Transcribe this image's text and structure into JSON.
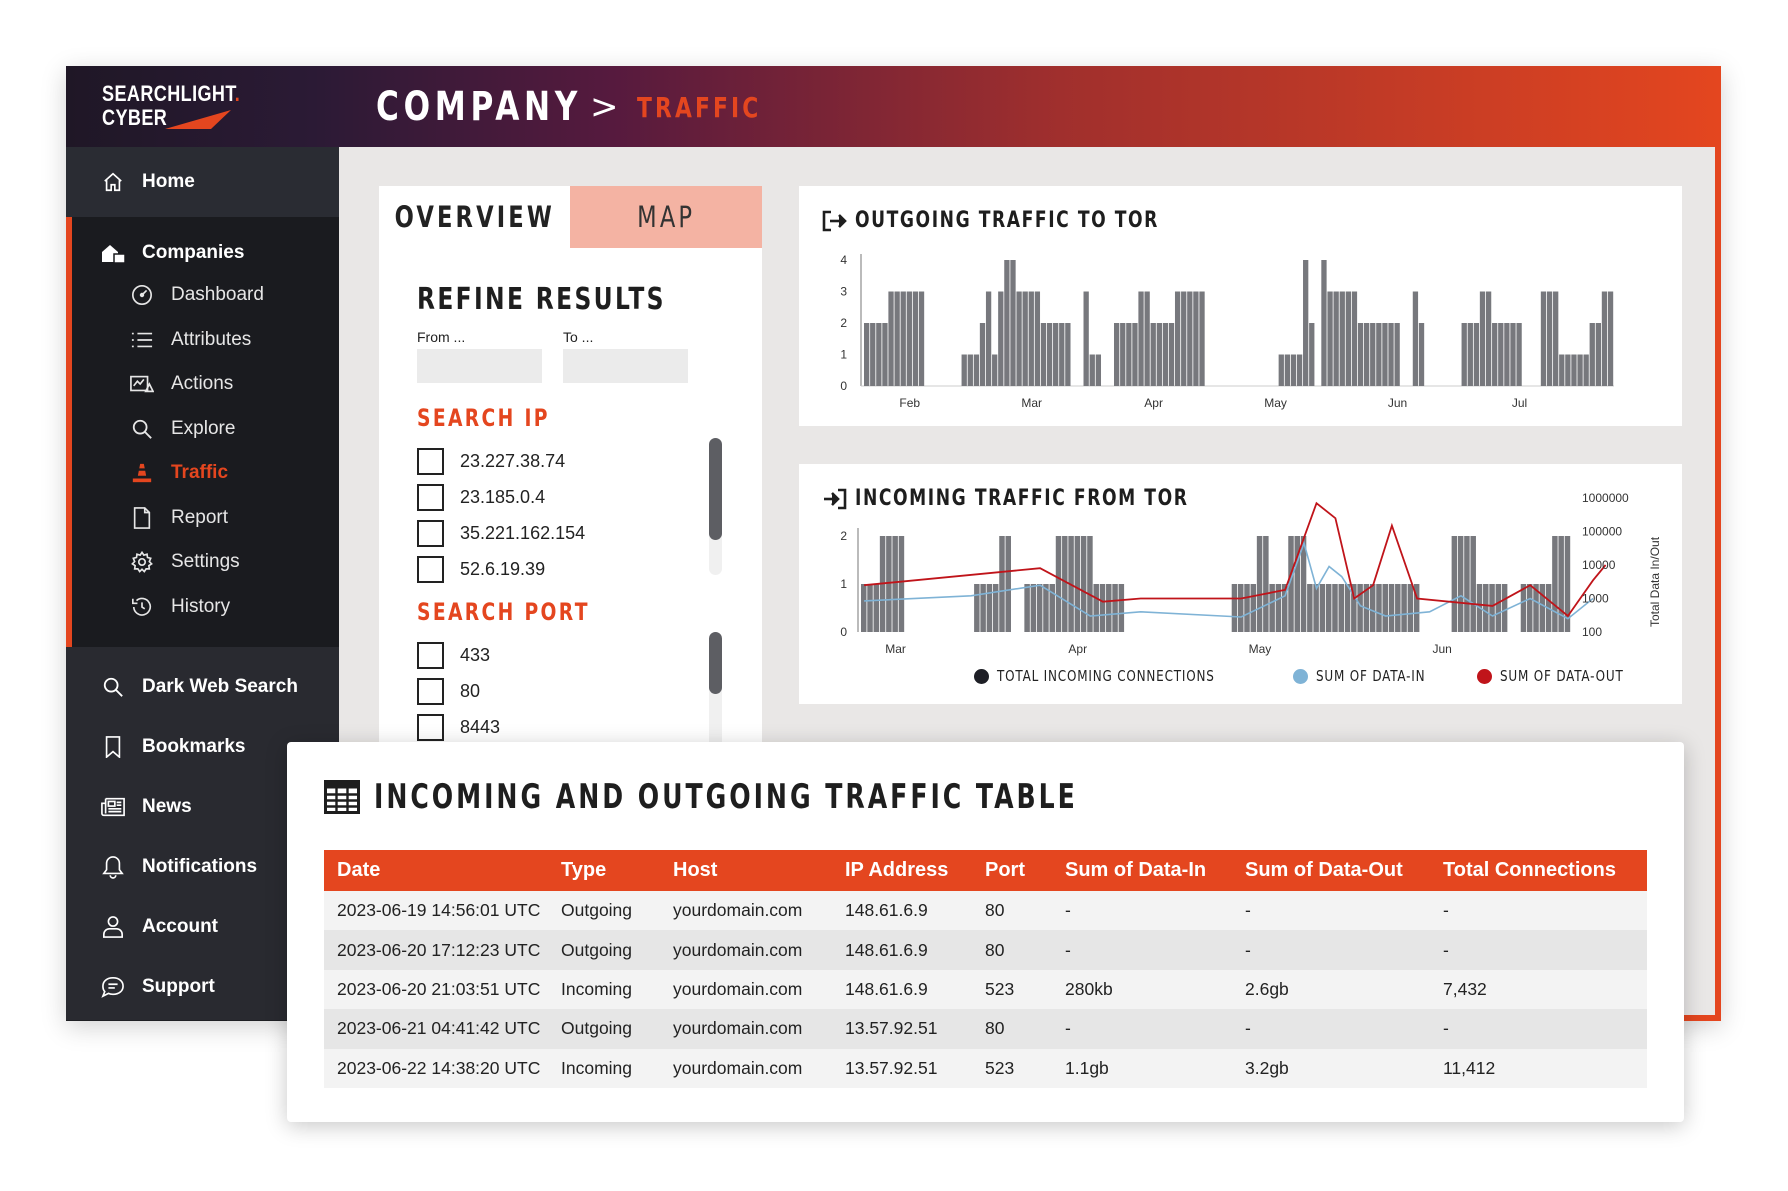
{
  "brand": {
    "line1": "SEARCHLIGHT",
    "dot": ".",
    "line2": "CYBER",
    "accent": "#e4461f"
  },
  "breadcrumb": {
    "section": "COMPANY",
    "separator": ">",
    "current": "TRAFFIC"
  },
  "sidebar": {
    "home": "Home",
    "companies": "Companies",
    "sub_items": [
      {
        "label": "Dashboard",
        "icon": "dashboard-icon"
      },
      {
        "label": "Attributes",
        "icon": "list-icon"
      },
      {
        "label": "Actions",
        "icon": "actions-icon"
      },
      {
        "label": "Explore",
        "icon": "search-icon"
      },
      {
        "label": "Traffic",
        "icon": "traffic-cone-icon",
        "active": true
      },
      {
        "label": "Report",
        "icon": "document-icon"
      },
      {
        "label": "Settings",
        "icon": "gear-icon"
      },
      {
        "label": "History",
        "icon": "history-icon"
      }
    ],
    "nav": [
      {
        "label": "Dark Web Search",
        "icon": "search-icon"
      },
      {
        "label": "Bookmarks",
        "icon": "bookmark-icon"
      },
      {
        "label": "News",
        "icon": "news-icon"
      },
      {
        "label": "Notifications",
        "icon": "bell-icon"
      },
      {
        "label": "Account",
        "icon": "user-icon"
      },
      {
        "label": "Support",
        "icon": "chat-icon"
      }
    ]
  },
  "filters": {
    "tabs": [
      "OVERVIEW",
      "MAP"
    ],
    "refine_title": "REFINE RESULTS",
    "from_label": "From ...",
    "to_label": "To ...",
    "search_ip_title": "SEARCH IP",
    "ips": [
      "23.227.38.74",
      "23.185.0.4",
      "35.221.162.154",
      "52.6.19.39"
    ],
    "ip_scroll_position": 0.0,
    "search_port_title": "SEARCH PORT",
    "ports": [
      "433",
      "80",
      "8443"
    ],
    "port_scroll_position": 0.0
  },
  "chart_data": [
    {
      "type": "bar",
      "title": "OUTGOING TRAFFIC TO TOR",
      "ylim": [
        0,
        4
      ],
      "yticks": [
        "0",
        "1",
        "2",
        "3",
        "4"
      ],
      "xtick_labels": [
        "Feb",
        "Mar",
        "Apr",
        "May",
        "Jun",
        "Jul"
      ],
      "xtick_index": [
        7,
        27,
        47,
        67,
        87,
        107
      ],
      "values": [
        2,
        2,
        2,
        2,
        3,
        3,
        3,
        3,
        3,
        3,
        0,
        0,
        0,
        0,
        0,
        0,
        1,
        1,
        1,
        2,
        3,
        1,
        3,
        4,
        4,
        3,
        3,
        3,
        3,
        2,
        2,
        2,
        2,
        2,
        0,
        0,
        3,
        1,
        1,
        0,
        0,
        2,
        2,
        2,
        2,
        3,
        3,
        2,
        2,
        2,
        2,
        3,
        3,
        3,
        3,
        3,
        0,
        0,
        0,
        0,
        0,
        0,
        0,
        0,
        0,
        0,
        0,
        0,
        1,
        1,
        1,
        1,
        4,
        2,
        0,
        4,
        3,
        3,
        3,
        3,
        3,
        2,
        2,
        2,
        2,
        2,
        2,
        2,
        0,
        0,
        3,
        2,
        0,
        0,
        0,
        0,
        0,
        0,
        2,
        2,
        2,
        3,
        3,
        2,
        2,
        2,
        2,
        2,
        0,
        0,
        0,
        3,
        3,
        3,
        1,
        1,
        1,
        1,
        1,
        2,
        2,
        3,
        3
      ]
    },
    {
      "type": "bar+line",
      "title": "INCOMING TRAFFIC FROM TOR",
      "ylim": [
        0,
        2
      ],
      "yticks": [
        "0",
        "1",
        "2"
      ],
      "y2_label": "Total Data In/Out",
      "y2_ticks": [
        "100",
        "1000",
        "10000",
        "100000",
        "1000000"
      ],
      "xtick_labels": [
        "Mar",
        "Apr",
        "May",
        "Jun"
      ],
      "xtick_index": [
        5,
        34,
        63,
        92
      ],
      "values": [
        1,
        1,
        1,
        2,
        2,
        2,
        2,
        0,
        0,
        0,
        0,
        0,
        0,
        0,
        0,
        0,
        0,
        0,
        1,
        1,
        1,
        1,
        2,
        2,
        0,
        0,
        1,
        1,
        1,
        1,
        1,
        2,
        2,
        2,
        2,
        2,
        2,
        1,
        1,
        1,
        1,
        1,
        0,
        0,
        0,
        0,
        0,
        0,
        0,
        0,
        0,
        0,
        0,
        0,
        0,
        0,
        0,
        0,
        0,
        1,
        1,
        1,
        1,
        2,
        2,
        1,
        1,
        1,
        2,
        2,
        2,
        1,
        1,
        1,
        1,
        1,
        1,
        1,
        1,
        1,
        1,
        1,
        1,
        1,
        1,
        1,
        1,
        1,
        1,
        0,
        0,
        0,
        0,
        0,
        2,
        2,
        2,
        2,
        1,
        1,
        1,
        1,
        1,
        0,
        0,
        1,
        1,
        1,
        1,
        1,
        2,
        2,
        2
      ],
      "series": [
        {
          "name": "TOTAL INCOMING CONNECTIONS",
          "color": "#1e1f26"
        },
        {
          "name": "SUM OF DATA-IN",
          "color": "#7fb3d6",
          "points": [
            [
              0,
              850
            ],
            [
              17,
              1200
            ],
            [
              28,
              2500
            ],
            [
              36,
              300
            ],
            [
              44,
              400
            ],
            [
              60,
              280
            ],
            [
              67,
              1200
            ],
            [
              70,
              45000
            ],
            [
              72,
              2000
            ],
            [
              74,
              9000
            ],
            [
              76,
              4500
            ],
            [
              79,
              600
            ],
            [
              83,
              300
            ],
            [
              90,
              400
            ],
            [
              95,
              1200
            ],
            [
              100,
              300
            ],
            [
              106,
              1000
            ],
            [
              112,
              250
            ],
            [
              116,
              1000
            ]
          ]
        },
        {
          "name": "SUM OF DATA-OUT",
          "color": "#c0141a",
          "points": [
            [
              0,
              2500
            ],
            [
              28,
              8000
            ],
            [
              38,
              800
            ],
            [
              44,
              1000
            ],
            [
              60,
              1000
            ],
            [
              67,
              1800
            ],
            [
              72,
              700000
            ],
            [
              75,
              250000
            ],
            [
              78,
              1000
            ],
            [
              81,
              2500
            ],
            [
              84,
              150000
            ],
            [
              88,
              1000
            ],
            [
              100,
              600
            ],
            [
              106,
              2500
            ],
            [
              112,
              300
            ],
            [
              116,
              3500
            ],
            [
              118,
              10000
            ]
          ]
        }
      ]
    }
  ],
  "table": {
    "title": "INCOMING AND OUTGOING TRAFFIC TABLE",
    "columns": [
      "Date",
      "Type",
      "Host",
      "IP Address",
      "Port",
      "Sum of Data-In",
      "Sum of Data-Out",
      "Total Connections"
    ],
    "rows": [
      [
        "2023-06-19 14:56:01 UTC",
        "Outgoing",
        "yourdomain.com",
        "148.61.6.9",
        "80",
        "-",
        "-",
        "-"
      ],
      [
        "2023-06-20 17:12:23 UTC",
        "Outgoing",
        "yourdomain.com",
        "148.61.6.9",
        "80",
        "-",
        "-",
        "-"
      ],
      [
        "2023-06-20 21:03:51 UTC",
        "Incoming",
        "yourdomain.com",
        "148.61.6.9",
        "523",
        "280kb",
        "2.6gb",
        "7,432"
      ],
      [
        "2023-06-21 04:41:42 UTC",
        "Outgoing",
        "yourdomain.com",
        "13.57.92.51",
        "80",
        "-",
        "-",
        "-"
      ],
      [
        "2023-06-22 14:38:20 UTC",
        "Incoming",
        "yourdomain.com",
        "13.57.92.51",
        "523",
        "1.1gb",
        "3.2gb",
        "11,412"
      ]
    ]
  }
}
